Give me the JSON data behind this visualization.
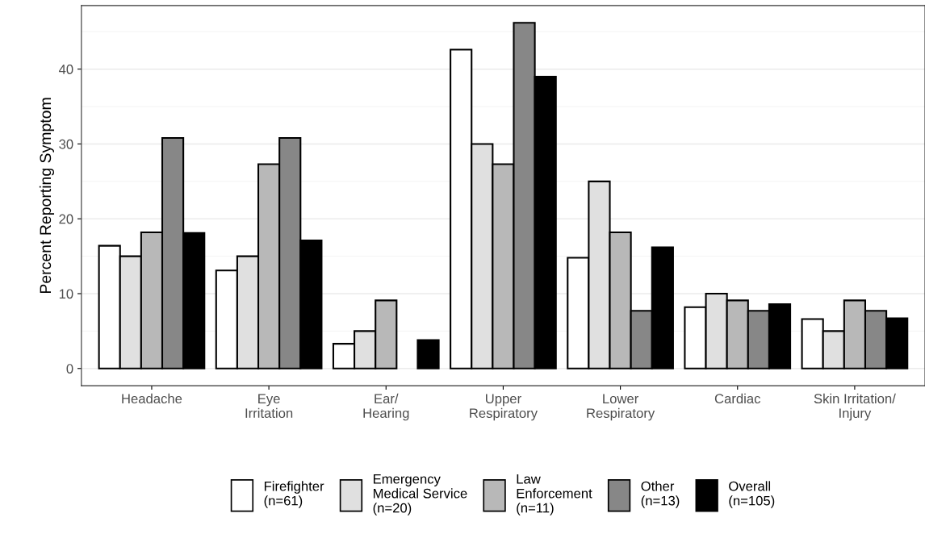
{
  "chart_data": {
    "type": "bar",
    "ylabel": "Percent Reporting Symptom",
    "categories": [
      "Headache",
      "Eye\nIrritation",
      "Ear/\nHearing",
      "Upper\nRespiratory",
      "Lower\nRespiratory",
      "Cardiac",
      "Skin Irritation/\nInjury"
    ],
    "series": [
      {
        "name": "Firefighter\n(n=61)",
        "color": "#ffffff",
        "values": [
          16.4,
          13.1,
          3.3,
          42.6,
          14.8,
          8.2,
          6.6
        ]
      },
      {
        "name": "Emergency\nMedical Service\n(n=20)",
        "color": "#e0e0e0",
        "values": [
          15,
          15,
          5,
          30,
          25,
          10,
          5
        ]
      },
      {
        "name": "Law\nEnforcement\n(n=11)",
        "color": "#b8b8b8",
        "values": [
          18.2,
          27.3,
          9.1,
          27.3,
          18.2,
          9.1,
          9.1
        ]
      },
      {
        "name": "Other\n(n=13)",
        "color": "#878787",
        "values": [
          30.8,
          30.8,
          null,
          46.2,
          7.7,
          7.7,
          7.7
        ]
      },
      {
        "name": "Overall\n(n=105)",
        "color": "#000000",
        "values": [
          18.1,
          17.1,
          3.8,
          39.0,
          16.2,
          8.6,
          6.7
        ]
      }
    ],
    "ylim": [
      -2.3,
      48.5
    ],
    "yticks": [
      0,
      10,
      20,
      30,
      40
    ],
    "grid": "y",
    "legend": "bottom"
  }
}
